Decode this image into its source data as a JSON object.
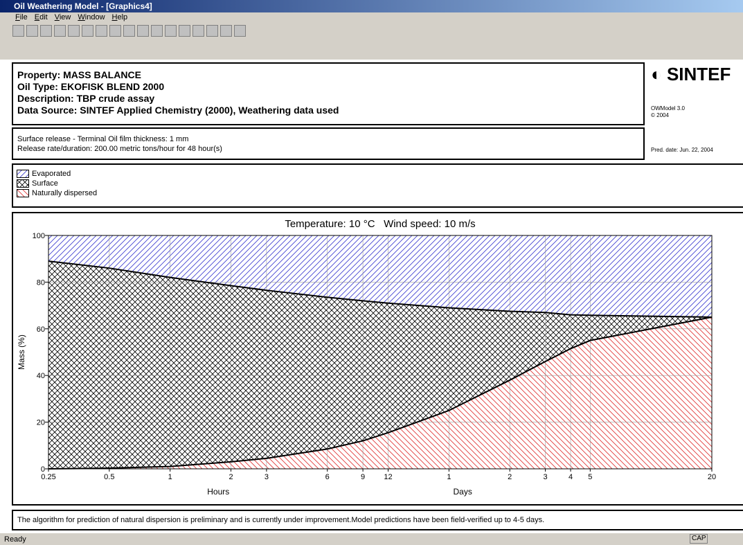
{
  "window": {
    "title": "Oil Weathering Model - [Graphics4]",
    "menu": [
      "File",
      "Edit",
      "View",
      "Window",
      "Help"
    ],
    "status": "Ready",
    "indicator": "CAP"
  },
  "header": {
    "lines": [
      "Property: MASS BALANCE",
      "Oil Type: EKOFISK BLEND 2000",
      "Description: TBP crude assay",
      "Data Source: SINTEF Applied Chemistry (2000), Weathering data used"
    ],
    "logo": "SINTEF",
    "version": "OWModel 3.0",
    "copyright": "© 2004"
  },
  "release": {
    "lines": [
      "Surface release - Terminal Oil film thickness: 1 mm",
      "Release rate/duration: 200.00 metric tons/hour for 48 hour(s)"
    ],
    "pred_date": "Pred. date: Jun. 22, 2004"
  },
  "note": "The algorithm for prediction of natural dispersion is preliminary and is currently under improvement.Model predictions have been field-verified up to 4-5 days.",
  "chart_data": {
    "type": "area",
    "stacked": true,
    "title": "Temperature: 10 °C   Wind speed: 10 m/s",
    "y_label": "Mass (%)",
    "x_labels": [
      "Hours",
      "Days"
    ],
    "x": [
      0.25,
      0.5,
      1,
      2,
      3,
      6,
      9,
      12,
      24,
      48,
      72,
      96,
      120,
      480
    ],
    "series": [
      {
        "name": "Naturally dispersed",
        "color": "#e03030",
        "values": [
          0,
          0.3,
          1,
          3,
          4.5,
          8.5,
          12,
          15.5,
          25,
          38,
          46,
          51.5,
          55,
          65
        ]
      },
      {
        "name": "Surface",
        "color": "#000000",
        "values": [
          89,
          85.7,
          81,
          75.5,
          72,
          65,
          60,
          55.5,
          44,
          29.5,
          21,
          14.5,
          10.8,
          0
        ]
      },
      {
        "name": "Evaporated",
        "color": "#3a3ad0",
        "values": [
          11,
          14,
          18,
          21.5,
          23.5,
          26.5,
          28,
          29,
          31,
          32.5,
          33,
          34,
          34.2,
          35
        ]
      }
    ],
    "xlim": [
      0.25,
      480
    ],
    "x_log": true,
    "xticks": [
      0.25,
      0.5,
      1,
      2,
      3,
      6,
      9,
      12,
      {
        "value": 24,
        "label": "1"
      },
      {
        "value": 48,
        "label": "2"
      },
      {
        "value": 72,
        "label": "3"
      },
      {
        "value": 96,
        "label": "4"
      },
      {
        "value": 120,
        "label": "5"
      },
      {
        "value": 480,
        "label": "20"
      }
    ],
    "ylim": [
      0,
      100
    ],
    "yticks": [
      0,
      20,
      40,
      60,
      80,
      100
    ],
    "grid": true
  }
}
